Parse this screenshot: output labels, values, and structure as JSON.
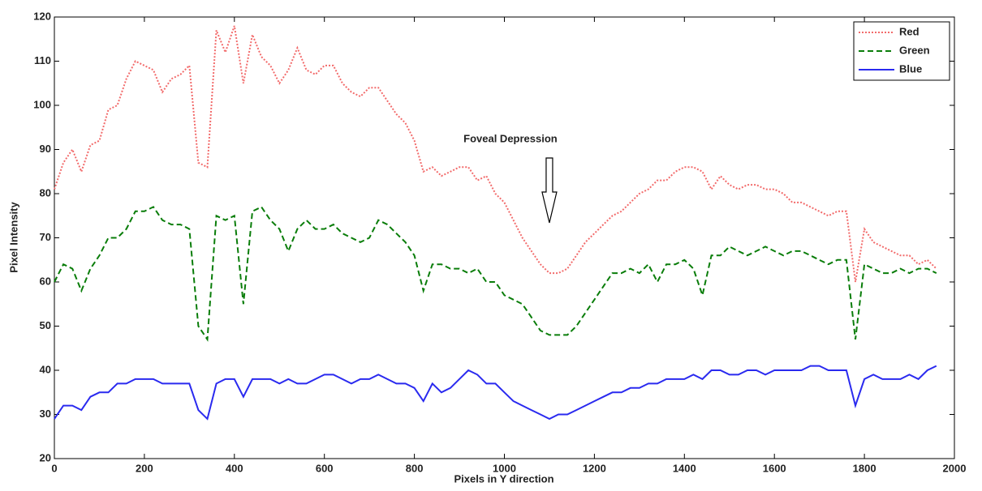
{
  "chart_data": {
    "type": "line",
    "xlabel": "Pixels in Y direction",
    "ylabel": "Pixel Intensity",
    "annotation": {
      "text": "Foveal Depression",
      "x": 1100
    },
    "legend": "northeast",
    "grid": false,
    "xlim": [
      0,
      2000
    ],
    "ylim": [
      20,
      120
    ],
    "xticks": [
      0,
      200,
      400,
      600,
      800,
      1000,
      1200,
      1400,
      1600,
      1800,
      2000
    ],
    "yticks": [
      20,
      30,
      40,
      50,
      60,
      70,
      80,
      90,
      100,
      110,
      120
    ],
    "x": [
      0,
      20,
      40,
      60,
      80,
      100,
      120,
      140,
      160,
      180,
      200,
      220,
      240,
      260,
      280,
      300,
      320,
      340,
      360,
      380,
      400,
      420,
      440,
      460,
      480,
      500,
      520,
      540,
      560,
      580,
      600,
      620,
      640,
      660,
      680,
      700,
      720,
      740,
      760,
      780,
      800,
      820,
      840,
      860,
      880,
      900,
      920,
      940,
      960,
      980,
      1000,
      1020,
      1040,
      1060,
      1080,
      1100,
      1120,
      1140,
      1160,
      1180,
      1200,
      1220,
      1240,
      1260,
      1280,
      1300,
      1320,
      1340,
      1360,
      1380,
      1400,
      1420,
      1440,
      1460,
      1480,
      1500,
      1520,
      1540,
      1560,
      1580,
      1600,
      1620,
      1640,
      1660,
      1680,
      1700,
      1720,
      1740,
      1760,
      1780,
      1800,
      1820,
      1840,
      1860,
      1880,
      1900,
      1920,
      1940,
      1960
    ],
    "series": [
      {
        "name": "Red",
        "color": "#f26b6b",
        "linestyle": "dotted",
        "values": [
          81,
          87,
          90,
          85,
          91,
          92,
          99,
          100,
          106,
          110,
          109,
          108,
          103,
          106,
          107,
          109,
          87,
          86,
          117,
          112,
          118,
          105,
          116,
          111,
          109,
          105,
          108,
          113,
          108,
          107,
          109,
          109,
          105,
          103,
          102,
          104,
          104,
          101,
          98,
          96,
          92,
          85,
          86,
          84,
          85,
          86,
          86,
          83,
          84,
          80,
          78,
          74,
          70,
          67,
          64,
          62,
          62,
          63,
          66,
          69,
          71,
          73,
          75,
          76,
          78,
          80,
          81,
          83,
          83,
          85,
          86,
          86,
          85,
          81,
          84,
          82,
          81,
          82,
          82,
          81,
          81,
          80,
          78,
          78,
          77,
          76,
          75,
          76,
          76,
          60,
          72,
          69,
          68,
          67,
          66,
          66,
          64,
          65,
          63
        ]
      },
      {
        "name": "Green",
        "color": "#0a7d0a",
        "linestyle": "dashed",
        "values": [
          60,
          64,
          63,
          58,
          63,
          66,
          70,
          70,
          72,
          76,
          76,
          77,
          74,
          73,
          73,
          72,
          50,
          47,
          75,
          74,
          75,
          55,
          76,
          77,
          74,
          72,
          67,
          72,
          74,
          72,
          72,
          73,
          71,
          70,
          69,
          70,
          74,
          73,
          71,
          69,
          66,
          58,
          64,
          64,
          63,
          63,
          62,
          63,
          60,
          60,
          57,
          56,
          55,
          52,
          49,
          48,
          48,
          48,
          50,
          53,
          56,
          59,
          62,
          62,
          63,
          62,
          64,
          60,
          64,
          64,
          65,
          63,
          57,
          66,
          66,
          68,
          67,
          66,
          67,
          68,
          67,
          66,
          67,
          67,
          66,
          65,
          64,
          65,
          65,
          47,
          64,
          63,
          62,
          62,
          63,
          62,
          63,
          63,
          62
        ]
      },
      {
        "name": "Blue",
        "color": "#2a2aef",
        "linestyle": "solid",
        "values": [
          29,
          32,
          32,
          31,
          34,
          35,
          35,
          37,
          37,
          38,
          38,
          38,
          37,
          37,
          37,
          37,
          31,
          29,
          37,
          38,
          38,
          34,
          38,
          38,
          38,
          37,
          38,
          37,
          37,
          38,
          39,
          39,
          38,
          37,
          38,
          38,
          39,
          38,
          37,
          37,
          36,
          33,
          37,
          35,
          36,
          38,
          40,
          39,
          37,
          37,
          35,
          33,
          32,
          31,
          30,
          29,
          30,
          30,
          31,
          32,
          33,
          34,
          35,
          35,
          36,
          36,
          37,
          37,
          38,
          38,
          38,
          39,
          38,
          40,
          40,
          39,
          39,
          40,
          40,
          39,
          40,
          40,
          40,
          40,
          41,
          41,
          40,
          40,
          40,
          32,
          38,
          39,
          38,
          38,
          38,
          39,
          38,
          40,
          41
        ]
      }
    ]
  }
}
